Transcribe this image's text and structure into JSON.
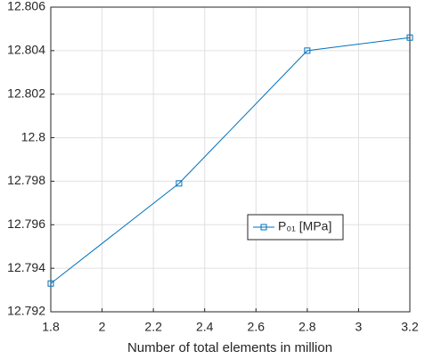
{
  "chart_data": {
    "type": "line",
    "x_label": "Number of total elements in million",
    "x": [
      1.8,
      2.3,
      2.8,
      3.2
    ],
    "series": [
      {
        "name": "P₀₁ [MPa]",
        "color": "#0072bd",
        "values": [
          12.7933,
          12.7979,
          12.804,
          12.8046
        ]
      }
    ],
    "xlim": [
      1.8,
      3.2
    ],
    "xticks": [
      1.8,
      2,
      2.2,
      2.4,
      2.6,
      2.8,
      3,
      3.2
    ],
    "ylim": [
      12.792,
      12.806
    ],
    "yticks": [
      12.792,
      12.794,
      12.796,
      12.798,
      12.8,
      12.802,
      12.804,
      12.806
    ],
    "grid": true
  }
}
